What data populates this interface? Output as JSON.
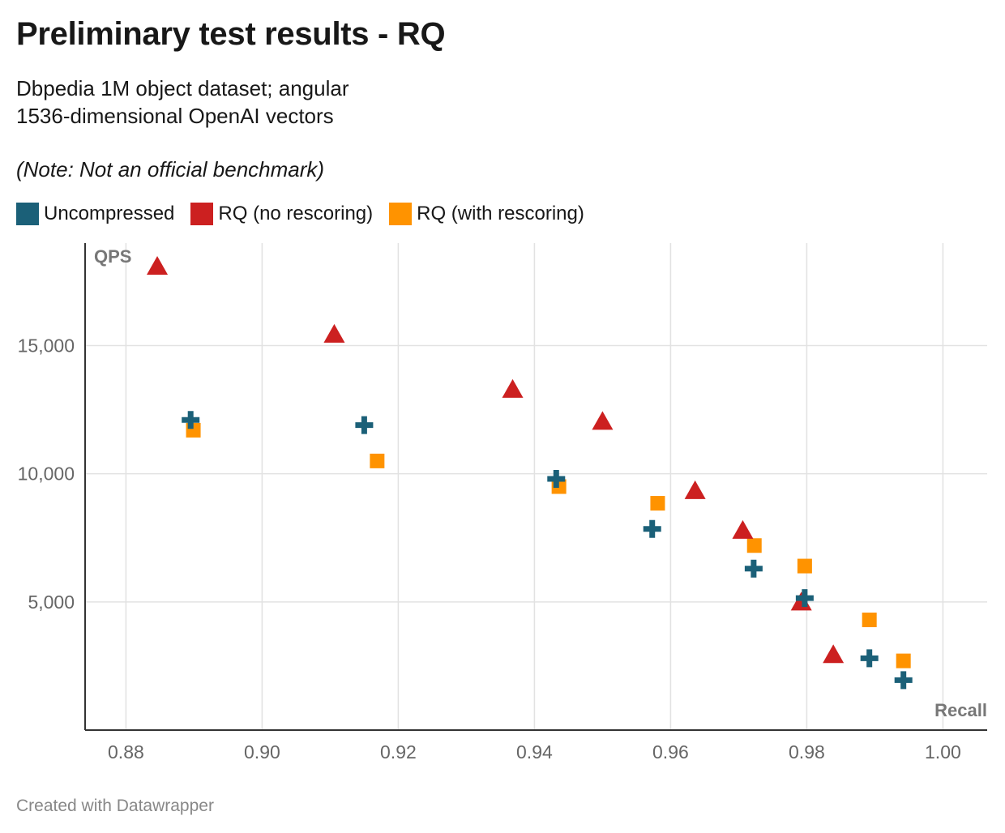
{
  "header": {
    "title": "Preliminary test results - RQ",
    "subtitle_line1": "Dbpedia 1M object dataset; angular",
    "subtitle_line2": "1536-dimensional OpenAI vectors",
    "note": "(Note: Not an official benchmark)"
  },
  "footer": {
    "credit": "Created with Datawrapper"
  },
  "colors": {
    "uncompressed": "#1b6078",
    "rq_no_rescoring": "#cc2020",
    "rq_with_rescoring": "#ff9300",
    "grid": "#e2e2e2",
    "axis": "#333333"
  },
  "chart_data": {
    "type": "scatter",
    "xlabel": "Recall",
    "ylabel": "QPS",
    "xlim": [
      0.874,
      1.0065
    ],
    "ylim": [
      0,
      19000
    ],
    "x_ticks": [
      0.88,
      0.9,
      0.92,
      0.94,
      0.96,
      0.98,
      1.0
    ],
    "x_tick_labels": [
      "0.88",
      "0.90",
      "0.92",
      "0.94",
      "0.96",
      "0.98",
      "1.00"
    ],
    "y_ticks": [
      5000,
      10000,
      15000
    ],
    "y_tick_labels": [
      "5,000",
      "10,000",
      "15,000"
    ],
    "grid": true,
    "legend_position": "top",
    "series": [
      {
        "name": "Uncompressed",
        "marker": "cross",
        "color": "#1b6078",
        "points": [
          {
            "x": 0.8895,
            "y": 12100
          },
          {
            "x": 0.915,
            "y": 11900
          },
          {
            "x": 0.9432,
            "y": 9800
          },
          {
            "x": 0.9573,
            "y": 7850
          },
          {
            "x": 0.9722,
            "y": 6300
          },
          {
            "x": 0.9797,
            "y": 5150
          },
          {
            "x": 0.9892,
            "y": 2800
          },
          {
            "x": 0.9942,
            "y": 1950
          }
        ]
      },
      {
        "name": "RQ (no rescoring)",
        "marker": "triangle",
        "color": "#cc2020",
        "points": [
          {
            "x": 0.8846,
            "y": 18050
          },
          {
            "x": 0.9106,
            "y": 15400
          },
          {
            "x": 0.9368,
            "y": 13250
          },
          {
            "x": 0.95,
            "y": 12000
          },
          {
            "x": 0.9636,
            "y": 9300
          },
          {
            "x": 0.9706,
            "y": 7750
          },
          {
            "x": 0.9792,
            "y": 4950
          },
          {
            "x": 0.9839,
            "y": 2900
          }
        ]
      },
      {
        "name": "RQ (with rescoring)",
        "marker": "square",
        "color": "#ff9300",
        "points": [
          {
            "x": 0.8899,
            "y": 11700
          },
          {
            "x": 0.9169,
            "y": 10500
          },
          {
            "x": 0.9436,
            "y": 9500
          },
          {
            "x": 0.9581,
            "y": 8850
          },
          {
            "x": 0.9723,
            "y": 7200
          },
          {
            "x": 0.9797,
            "y": 6400
          },
          {
            "x": 0.9892,
            "y": 4300
          },
          {
            "x": 0.9942,
            "y": 2700
          }
        ]
      }
    ]
  }
}
